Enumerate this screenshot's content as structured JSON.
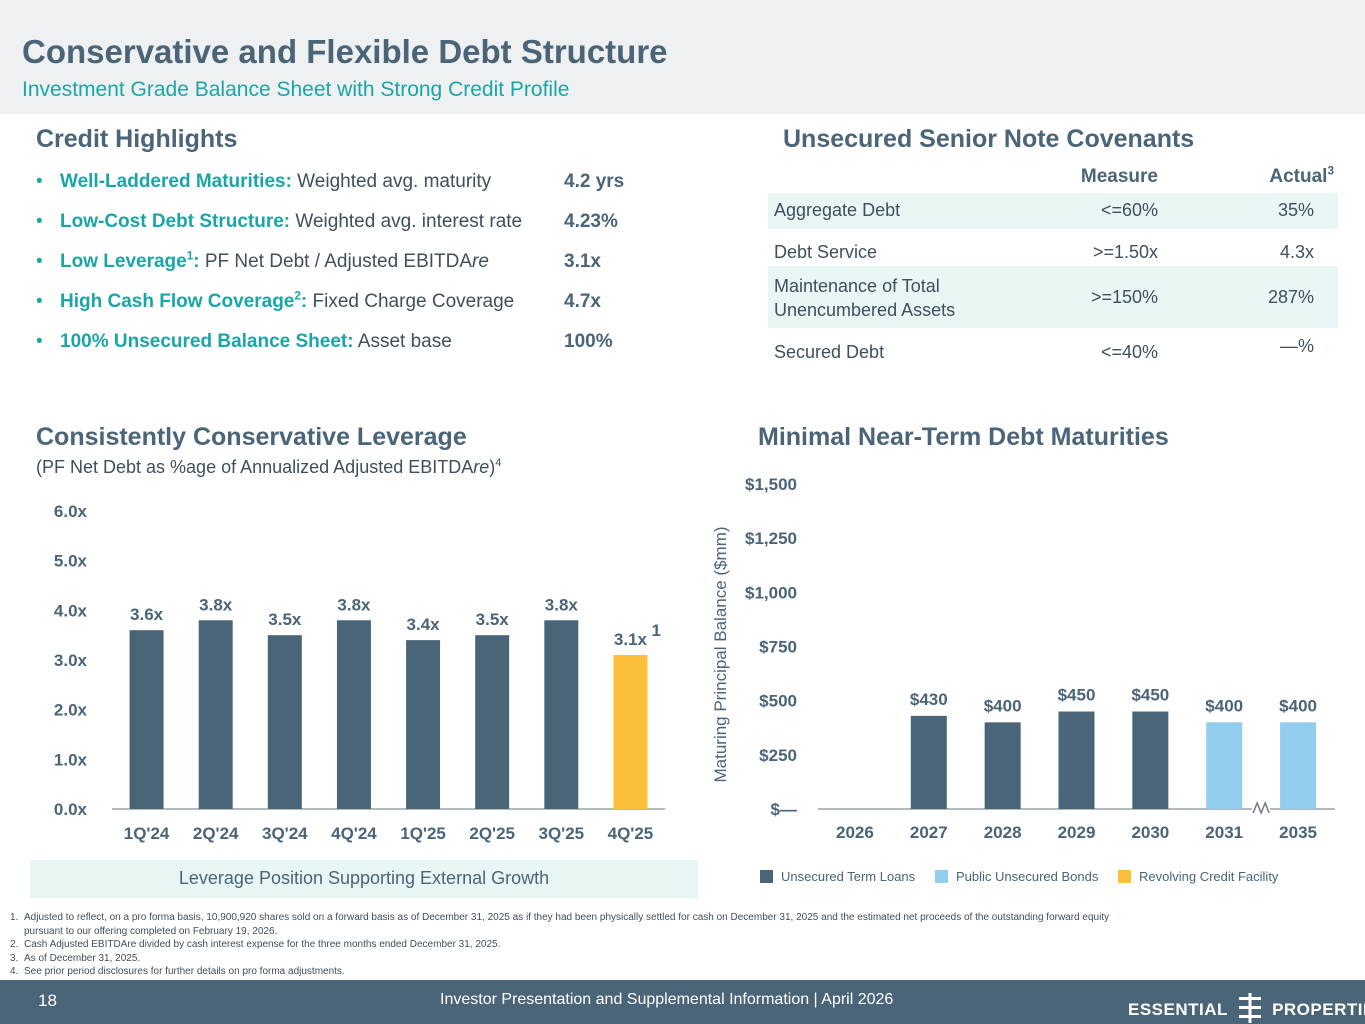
{
  "header": {
    "title": "Conservative and Flexible Debt Structure",
    "subtitle": "Investment Grade Balance Sheet with Strong Credit Profile"
  },
  "credit_highlights": {
    "heading": "Credit Highlights",
    "items": [
      {
        "bullet": "•",
        "label": "Well-Laddered Maturities:",
        "sup": "",
        "desc": " Weighted avg. maturity",
        "value": "4.2 yrs"
      },
      {
        "bullet": "•",
        "label": "Low-Cost Debt Structure:",
        "sup": "",
        "desc": " Weighted avg. interest rate",
        "value": "4.23%"
      },
      {
        "bullet": "•",
        "label": "Low Leverage",
        "sup": "1",
        "label_suffix": ":",
        "desc": " PF Net Debt / Adjusted EBITDA",
        "desc_italic": "re",
        "value": "3.1x"
      },
      {
        "bullet": "•",
        "label": "High Cash Flow Coverage",
        "sup": "2",
        "label_suffix": ":",
        "desc": " Fixed Charge Coverage",
        "value": "4.7x"
      },
      {
        "bullet": "•",
        "label": "100% Unsecured Balance Sheet:",
        "sup": "",
        "desc": " Asset base",
        "value": "100%"
      }
    ]
  },
  "covenants": {
    "heading": "Unsecured Senior Note Covenants",
    "col_measure": "Measure",
    "col_actual": "Actual",
    "col_actual_sup": "3",
    "rows": [
      {
        "name": "Aggregate Debt",
        "name2": "",
        "measure": "<=60%",
        "actual": "35%"
      },
      {
        "name": "Debt Service",
        "name2": "",
        "measure": ">=1.50x",
        "actual": "4.3x"
      },
      {
        "name": "Maintenance of Total",
        "name2": "Unencumbered Assets",
        "measure": ">=150%",
        "actual": "287%"
      },
      {
        "name": "Secured Debt",
        "name2": "",
        "measure": "<=40%",
        "actual": "—%"
      }
    ]
  },
  "leverage": {
    "heading": "Consistently Conservative Leverage",
    "subheading_pre": "(PF Net Debt as %age of Annualized Adjusted EBITDA",
    "subheading_italic": "re",
    "subheading_post": ")",
    "subheading_sup": "4",
    "callout": "Leverage Position Supporting External Growth",
    "colors": {
      "base": "#4a6478",
      "highlight": "#fbbf3b"
    }
  },
  "maturities": {
    "heading": "Minimal Near-Term Debt Maturities",
    "legend": [
      {
        "label": "Unsecured Term Loans",
        "color": "#4a6478"
      },
      {
        "label": "Public Unsecured Bonds",
        "color": "#93cdee"
      },
      {
        "label": "Revolving Credit Facility",
        "color": "#fbbf3b"
      }
    ]
  },
  "chart_data": [
    {
      "type": "bar",
      "categories": [
        "1Q'24",
        "2Q'24",
        "3Q'24",
        "4Q'24",
        "1Q'25",
        "2Q'25",
        "3Q'25",
        "4Q'25"
      ],
      "values": [
        3.6,
        3.8,
        3.5,
        3.8,
        3.4,
        3.5,
        3.8,
        3.1
      ],
      "data_labels": [
        "3.6x",
        "3.8x",
        "3.5x",
        "3.8x",
        "3.4x",
        "3.5x",
        "3.8x",
        "3.1x"
      ],
      "highlight_index": 7,
      "highlight_label_sup": "1",
      "yticks": [
        "0.0x",
        "1.0x",
        "2.0x",
        "3.0x",
        "4.0x",
        "5.0x",
        "6.0x"
      ],
      "ylim": [
        0,
        6
      ],
      "grid": false
    },
    {
      "type": "bar",
      "categories": [
        "2026",
        "2027",
        "2028",
        "2029",
        "2030",
        "2031",
        "2035"
      ],
      "series": [
        {
          "name": "Unsecured Term Loans",
          "values": [
            0,
            430,
            400,
            450,
            450,
            0,
            0
          ]
        },
        {
          "name": "Public Unsecured Bonds",
          "values": [
            0,
            0,
            0,
            0,
            0,
            400,
            400
          ]
        },
        {
          "name": "Revolving Credit Facility",
          "values": [
            0,
            0,
            0,
            0,
            0,
            0,
            0
          ]
        }
      ],
      "data_labels": [
        "",
        "$430",
        "$400",
        "$450",
        "$450",
        "$400",
        "$400"
      ],
      "ylabel": "Maturing Principal Balance ($mm)",
      "yticks": [
        "$—",
        "$250",
        "$500",
        "$750",
        "$1,000",
        "$1,250",
        "$1,500"
      ],
      "ylim": [
        0,
        1500
      ],
      "axis_break_between": [
        "2031",
        "2035"
      ],
      "legend_position": "bottom",
      "grid": false
    }
  ],
  "footnotes": [
    {
      "n": "1.",
      "text": "Adjusted to reflect, on a pro forma basis, 10,900,920 shares sold on a forward basis as of December 31, 2025 as if they had been physically settled for cash on December 31, 2025 and the estimated net proceeds of the outstanding forward equity",
      "text2": "pursuant to our offering completed on February 19, 2026."
    },
    {
      "n": "2.",
      "text": "Cash Adjusted EBITDAre divided by cash interest expense for the three months ended December 31, 2025.",
      "text2": ""
    },
    {
      "n": "3.",
      "text": "As of December 31, 2025.",
      "text2": ""
    },
    {
      "n": "4.",
      "text": "See prior period disclosures for further details on pro forma adjustments.",
      "text2": ""
    }
  ],
  "footer": {
    "page_number": "18",
    "presentation": "Investor Presentation and Supplemental Information |  April 2026",
    "logo_left": "ESSENTIAL",
    "logo_right": "PROPERTIES"
  }
}
